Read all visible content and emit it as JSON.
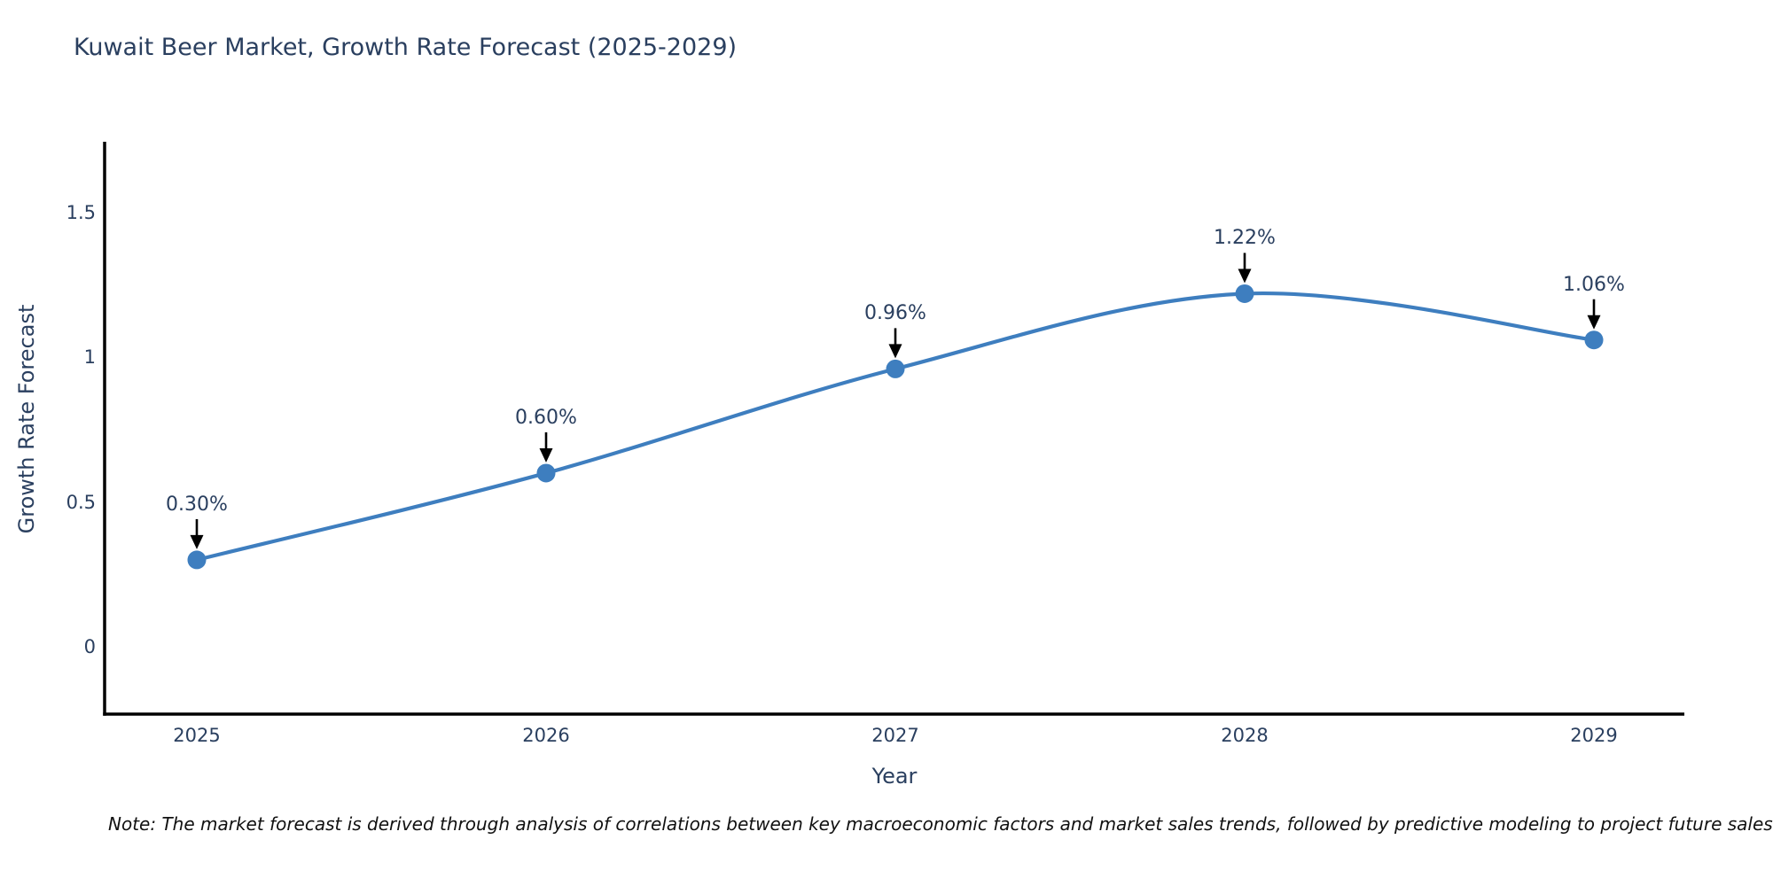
{
  "note": "Note: The market forecast is derived through analysis of correlations between key macroeconomic factors and market sales trends, followed by predictive modeling to project future sales",
  "chart_data": {
    "type": "line",
    "title": "Kuwait Beer Market, Growth Rate Forecast (2025-2029)",
    "xlabel": "Year",
    "ylabel": "Growth Rate Forecast",
    "categories": [
      "2025",
      "2026",
      "2027",
      "2028",
      "2029"
    ],
    "series": [
      {
        "name": "Growth Rate Forecast",
        "values": [
          0.3,
          0.6,
          0.96,
          1.22,
          1.06
        ]
      }
    ],
    "point_labels": [
      "0.30%",
      "0.60%",
      "0.96%",
      "1.22%",
      "1.06%"
    ],
    "yticks": [
      {
        "value": 0,
        "label": "0"
      },
      {
        "value": 0.5,
        "label": "0.5"
      },
      {
        "value": 1,
        "label": "1"
      },
      {
        "value": 1.5,
        "label": "1.5"
      }
    ],
    "ylim": [
      -0.233,
      1.745
    ],
    "grid": false,
    "legend": "none",
    "line_shape": "spline",
    "colors": {
      "line": "#3E7EBF",
      "marker": "#3E7EBF",
      "axis": "#000000",
      "text": "#2a3f5f",
      "arrow": "#000000"
    }
  }
}
